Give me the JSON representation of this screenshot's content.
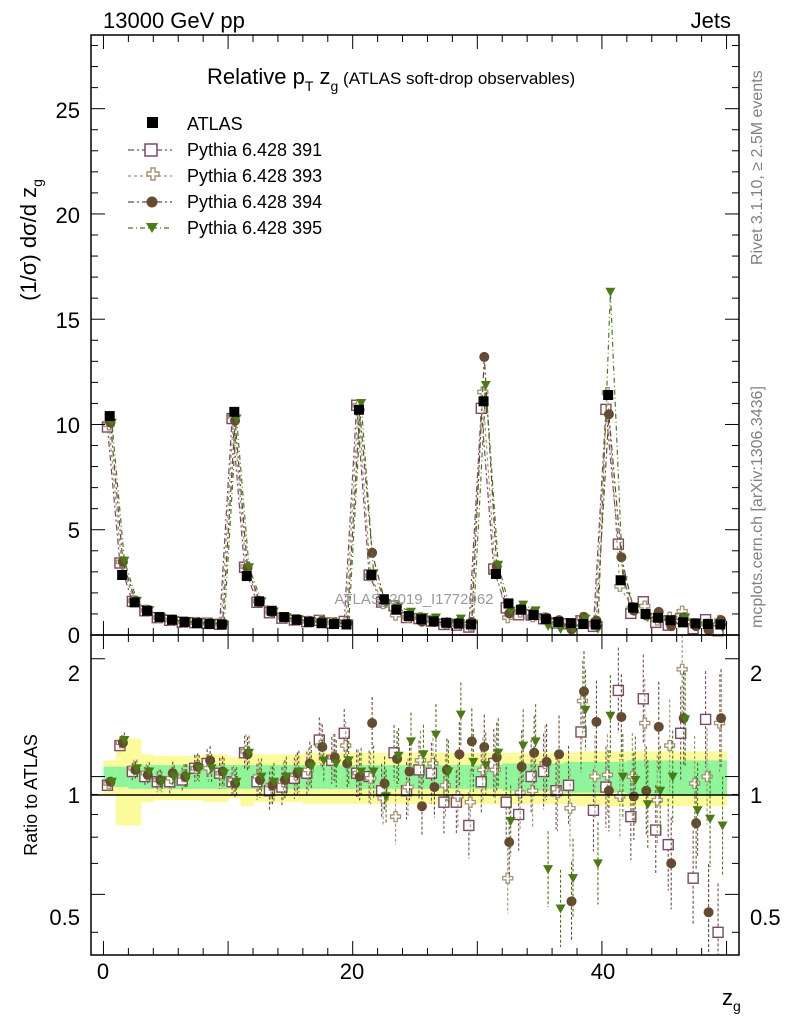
{
  "header": {
    "left": "13000 GeV pp",
    "right": "Jets"
  },
  "side_texts": {
    "rivet": "Rivet 3.1.10, ≥ 2.5M events",
    "mcplots": "mcplots.cern.ch [arXiv:1306.3436]"
  },
  "watermark": "ATLAS_2019_I1772062",
  "chart_data": {
    "type": "scatter",
    "title_main": "Relative p",
    "title_sub1": "T",
    "title_mid": " z",
    "title_sub2": "g",
    "title_paren": " (ATLAS soft-drop observables)",
    "ylabel": "(1/σ) dσ/d z",
    "ylabel_sub": "g",
    "xlabel": "z",
    "xlabel_sub": "g",
    "ratio_ylabel": "Ratio to ATLAS",
    "xlim": [
      -1,
      51
    ],
    "ylim": [
      0,
      28.5
    ],
    "ratio_ylim": [
      0.35,
      2.3
    ],
    "xticks": [
      "0",
      "20",
      "40"
    ],
    "yticks": [
      "0",
      "5",
      "10",
      "15",
      "20",
      "25"
    ],
    "ratio_yticks": [
      "0.5",
      "1",
      "2"
    ],
    "legend": [
      "ATLAS",
      "Pythia 6.428 391",
      "Pythia 6.428 393",
      "Pythia 6.428 394",
      "Pythia 6.428 395"
    ],
    "colors": {
      "atlas": "#000000",
      "p391": "#7b4a63",
      "p393": "#a29372",
      "p394": "#674a32",
      "p395": "#4c7a15",
      "band_inner": "#8ef59a",
      "band_outer": "#fbfb9b"
    },
    "x": [
      0.5,
      1.5,
      2.5,
      3.5,
      4.5,
      5.5,
      6.5,
      7.5,
      8.5,
      9.5,
      10.5,
      11.5,
      12.5,
      13.5,
      14.5,
      15.5,
      16.5,
      17.5,
      18.5,
      19.5,
      20.5,
      21.5,
      22.5,
      23.5,
      24.5,
      25.5,
      26.5,
      27.5,
      28.5,
      29.5,
      30.5,
      31.5,
      32.5,
      33.5,
      34.5,
      35.5,
      36.5,
      37.5,
      38.5,
      39.5,
      40.5,
      41.5,
      42.5,
      43.5,
      44.5,
      45.5,
      46.5,
      47.5,
      48.5,
      49.5
    ],
    "atlas": [
      10.4,
      2.85,
      1.55,
      1.15,
      0.85,
      0.72,
      0.62,
      0.56,
      0.52,
      0.5,
      10.6,
      2.8,
      1.6,
      1.15,
      0.85,
      0.72,
      0.62,
      0.56,
      0.52,
      0.5,
      10.7,
      2.85,
      1.7,
      1.2,
      0.9,
      0.75,
      0.65,
      0.58,
      0.54,
      0.5,
      11.1,
      2.9,
      1.5,
      1.2,
      0.95,
      0.75,
      0.62,
      0.56,
      0.52,
      0.5,
      11.4,
      2.6,
      1.3,
      1.0,
      0.82,
      0.7,
      0.6,
      0.55,
      0.52,
      0.5
    ],
    "series": [
      {
        "name": "Pythia 6.428 391",
        "ratio": [
          0.95,
          1.2,
          1.03,
          1.0,
          0.97,
          0.97,
          0.98,
          1.05,
          1.08,
          1.02,
          0.97,
          1.15,
          0.97,
          0.92,
          0.94,
          0.99,
          1.02,
          1.24,
          1.1,
          1.29,
          1.02,
          1.0,
          0.92,
          1.15,
          0.92,
          1.04,
          1.02,
          0.86,
          0.86,
          0.75,
          0.97,
          1.08,
          0.86,
          0.8,
          1.0,
          1.03,
          0.92,
          0.95,
          1.3,
          0.82,
          0.94,
          1.66,
          0.79,
          1.58,
          0.73,
          0.67,
          1.29,
          0.55,
          1.4,
          0.4
        ]
      },
      {
        "name": "Pythia 6.428 393",
        "ratio": [
          0.96,
          1.22,
          1.05,
          1.02,
          0.98,
          0.99,
          1.0,
          1.05,
          1.05,
          1.02,
          0.98,
          1.16,
          1.0,
          0.95,
          0.97,
          1.01,
          1.04,
          1.2,
          1.12,
          1.2,
          1.02,
          0.99,
          0.88,
          0.79,
          0.94,
          1.1,
          1.08,
          0.95,
          0.89,
          0.86,
          1.04,
          1.04,
          0.55,
          0.91,
          0.92,
          1.08,
          0.91,
          0.83,
          1.56,
          1.0,
          1.01,
          0.89,
          1.0,
          1.37,
          0.87,
          1.2,
          1.88,
          0.96,
          1.0,
          1.37
        ]
      },
      {
        "name": "Pythia 6.428 394",
        "ratio": [
          0.97,
          1.22,
          1.04,
          1.01,
          0.98,
          1.02,
          1.0,
          1.06,
          1.1,
          1.03,
          0.96,
          1.14,
          0.98,
          0.95,
          0.98,
          1.02,
          1.08,
          1.19,
          1.12,
          1.08,
          1.0,
          1.37,
          0.96,
          1.11,
          1.03,
          0.84,
          0.94,
          1.04,
          1.14,
          1.23,
          1.19,
          1.12,
          0.68,
          1.06,
          1.15,
          1.09,
          1.14,
          0.48,
          1.65,
          1.38,
          0.92,
          1.42,
          0.89,
          0.92,
          1.34,
          0.6,
          1.41,
          0.76,
          0.45,
          1.41
        ]
      },
      {
        "name": "Pythia 6.428 395",
        "ratio": [
          0.97,
          1.24,
          1.05,
          1.03,
          0.97,
          1.0,
          1.0,
          1.05,
          1.05,
          1.02,
          0.97,
          1.15,
          1.0,
          0.97,
          1.0,
          1.03,
          1.06,
          1.1,
          1.08,
          1.1,
          1.03,
          1.03,
          0.89,
          1.13,
          1.23,
          1.14,
          1.28,
          1.03,
          1.44,
          1.09,
          1.07,
          1.15,
          0.77,
          1.2,
          1.23,
          0.58,
          0.46,
          0.55,
          1.48,
          0.6,
          1.43,
          1.0,
          0.98,
          0.85,
          0.92,
          1.0,
          1.4,
          0.82,
          0.78,
          0.75
        ]
      }
    ],
    "band_inner_halfwidth": [
      0.06,
      0.06,
      0.07,
      0.07,
      0.07,
      0.07,
      0.07,
      0.07,
      0.07,
      0.07,
      0.07,
      0.07,
      0.07,
      0.07,
      0.07,
      0.07,
      0.07,
      0.07,
      0.07,
      0.07,
      0.07,
      0.07,
      0.07,
      0.07,
      0.07,
      0.07,
      0.07,
      0.07,
      0.07,
      0.07,
      0.07,
      0.07,
      0.08,
      0.08,
      0.08,
      0.08,
      0.08,
      0.09,
      0.09,
      0.09,
      0.09,
      0.09,
      0.1,
      0.1,
      0.1,
      0.1,
      0.1,
      0.1,
      0.1,
      0.1
    ],
    "band_outer_halfwidth": [
      0.1,
      0.25,
      0.25,
      0.14,
      0.13,
      0.13,
      0.13,
      0.13,
      0.14,
      0.14,
      0.12,
      0.16,
      0.14,
      0.14,
      0.14,
      0.14,
      0.15,
      0.15,
      0.15,
      0.15,
      0.15,
      0.15,
      0.15,
      0.15,
      0.15,
      0.15,
      0.15,
      0.15,
      0.15,
      0.15,
      0.15,
      0.15,
      0.15,
      0.15,
      0.15,
      0.15,
      0.15,
      0.15,
      0.16,
      0.16,
      0.16,
      0.16,
      0.16,
      0.16,
      0.16,
      0.16,
      0.16,
      0.16,
      0.16,
      0.16
    ]
  }
}
